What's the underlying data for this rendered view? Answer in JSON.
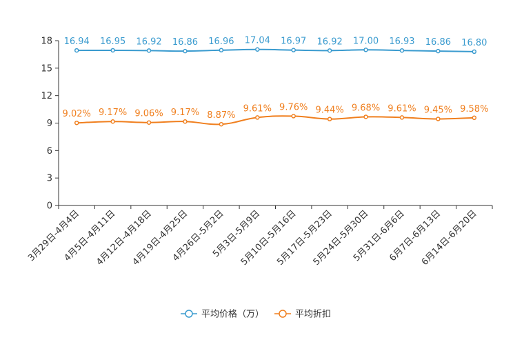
{
  "chart_data": {
    "type": "line",
    "categories": [
      "3月29日-4月4日",
      "4月5日-4月11日",
      "4月12日-4月18日",
      "4月19日-4月25日",
      "4月26日-5月2日",
      "5月3日-5月9日",
      "5月10日-5月16日",
      "5月17日-5月23日",
      "5月24日-5月30日",
      "5月31日-6月6日",
      "6月7日-6月13日",
      "6月14日-6月20日"
    ],
    "series": [
      {
        "name": "平均价格（万）",
        "color": "#3a9bcf",
        "values": [
          16.94,
          16.95,
          16.92,
          16.86,
          16.96,
          17.04,
          16.97,
          16.92,
          17.0,
          16.93,
          16.86,
          16.8
        ],
        "labels": [
          "16.94",
          "16.95",
          "16.92",
          "16.86",
          "16.96",
          "17.04",
          "16.97",
          "16.92",
          "17.00",
          "16.93",
          "16.86",
          "16.80"
        ]
      },
      {
        "name": "平均折扣",
        "color": "#f07f1e",
        "values": [
          9.02,
          9.17,
          9.06,
          9.17,
          8.87,
          9.61,
          9.76,
          9.44,
          9.68,
          9.61,
          9.45,
          9.58
        ],
        "labels": [
          "9.02%",
          "9.17%",
          "9.06%",
          "9.17%",
          "8.87%",
          "9.61%",
          "9.76%",
          "9.44%",
          "9.68%",
          "9.61%",
          "9.45%",
          "9.58%"
        ]
      }
    ],
    "yticks": [
      "0",
      "3",
      "6",
      "9",
      "12",
      "15",
      "18"
    ],
    "ylim": [
      0,
      18
    ],
    "grid": false,
    "legend_position": "bottom-center"
  }
}
